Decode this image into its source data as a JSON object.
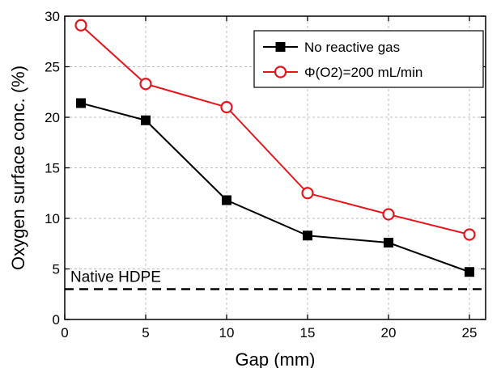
{
  "chart_data": {
    "type": "line",
    "xlabel": "Gap (mm)",
    "ylabel": "Oxygen surface conc. (%)",
    "xlim": [
      0,
      26
    ],
    "ylim": [
      0,
      30
    ],
    "xticks": [
      0,
      5,
      10,
      15,
      20,
      25
    ],
    "yticks": [
      0,
      5,
      10,
      15,
      20,
      25,
      30
    ],
    "grid": true,
    "legend_position": "top-right",
    "series": [
      {
        "name": "No reactive gas",
        "color": "#000000",
        "marker": "square-filled",
        "x": [
          1,
          5,
          10,
          15,
          20,
          25
        ],
        "y": [
          21.4,
          19.7,
          11.8,
          8.3,
          7.6,
          4.7
        ]
      },
      {
        "name": "Φ(O2)=200 mL/min",
        "color": "#e8141b",
        "marker": "circle-open",
        "x": [
          1,
          5,
          10,
          15,
          20,
          25
        ],
        "y": [
          29.1,
          23.3,
          21.0,
          12.5,
          10.4,
          8.4
        ]
      }
    ],
    "reference_line": {
      "label": "Native HDPE",
      "y": 3,
      "style": "dashed",
      "color": "#000000"
    }
  }
}
